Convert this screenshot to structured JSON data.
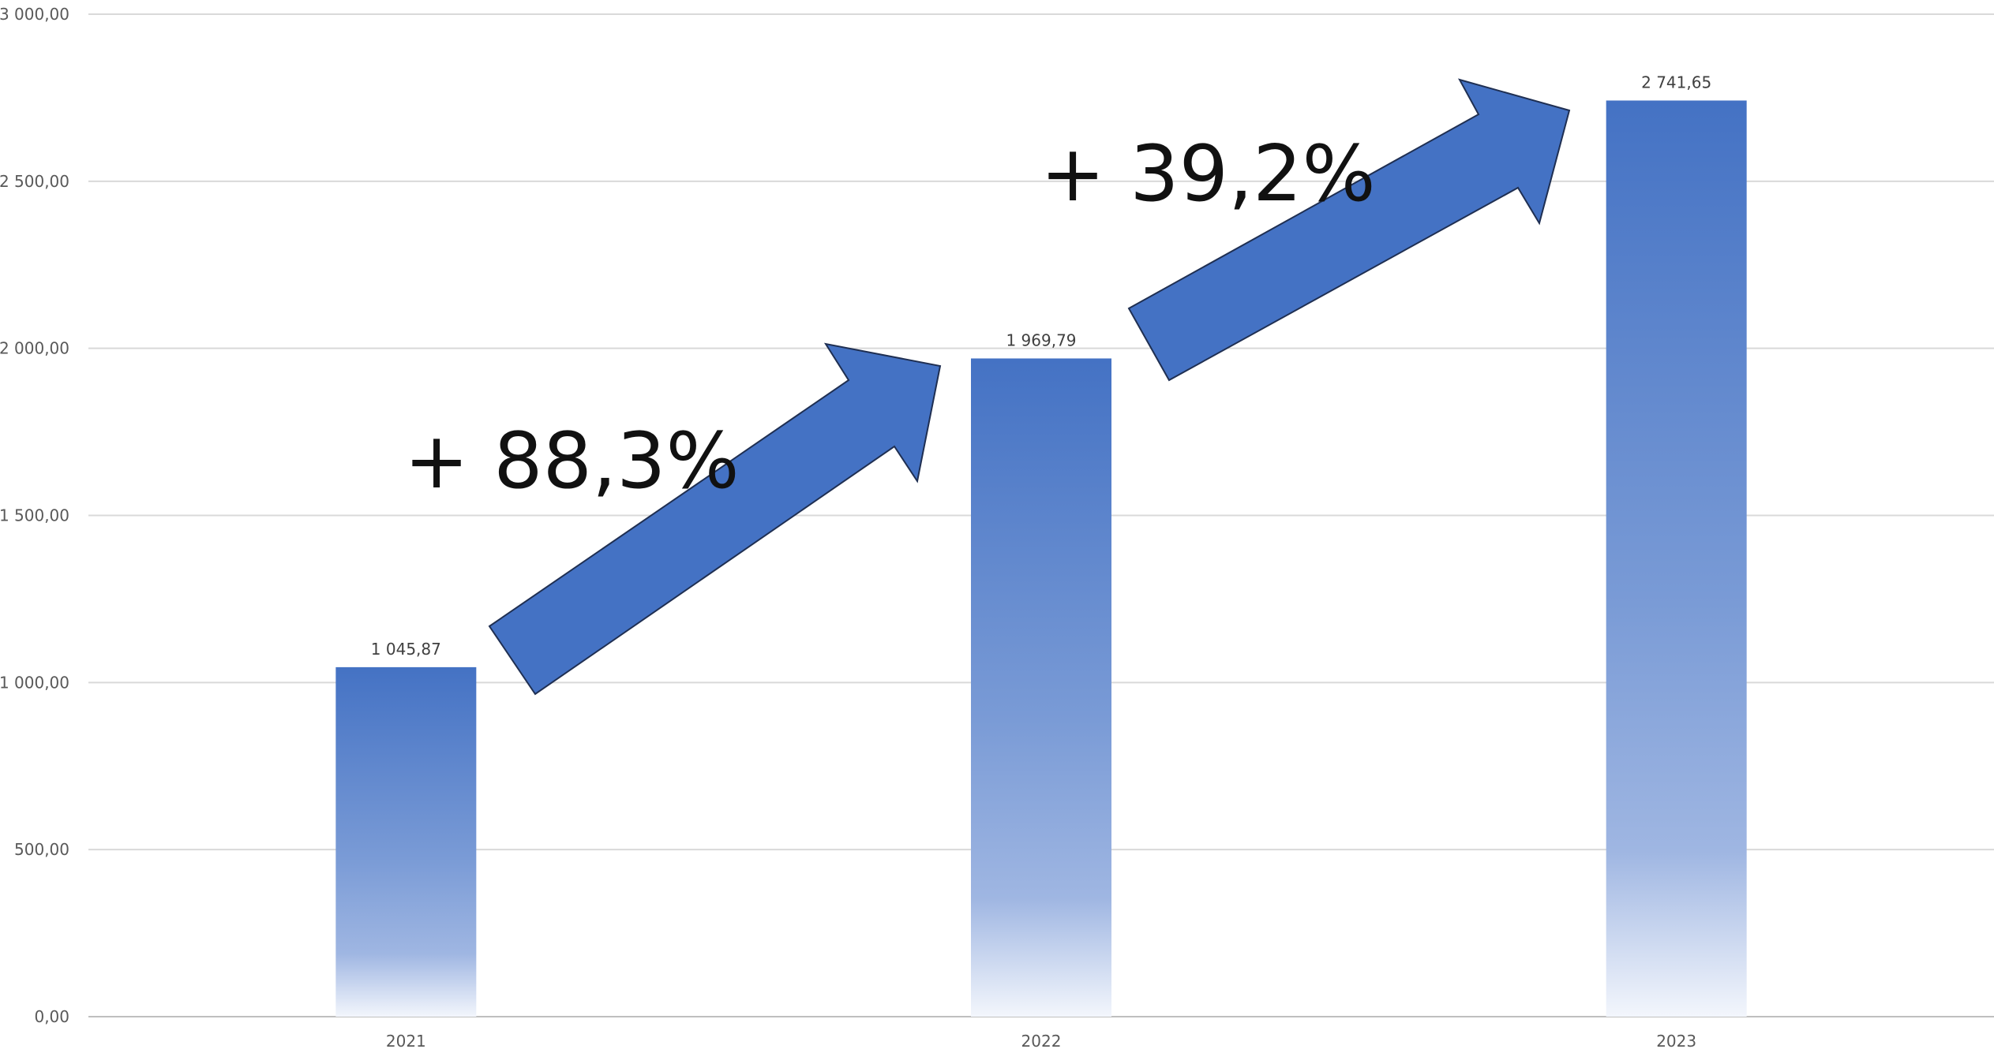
{
  "chart_data": {
    "type": "bar",
    "title": "(…)",
    "categories": [
      "2021",
      "2022",
      "2023"
    ],
    "values": [
      1045.87,
      1969.79,
      2741.65
    ],
    "value_labels": [
      "1 045,87",
      "1 969,79",
      "2 741,65"
    ],
    "ylim": [
      0,
      3000
    ],
    "yticks": [
      0,
      500,
      1000,
      1500,
      2000,
      2500,
      3000
    ],
    "ytick_labels": [
      "0,00",
      "500,00",
      "1 000,00",
      "1 500,00",
      "2 000,00",
      "2 500,00",
      "3 000,00"
    ],
    "grid": true,
    "legend": "none",
    "bar_color": "#4472c4",
    "annotations": [
      {
        "text": "+ 88,3%",
        "from": "2021",
        "to": "2022"
      },
      {
        "text": "+ 39,2%",
        "from": "2022",
        "to": "2023"
      }
    ]
  }
}
